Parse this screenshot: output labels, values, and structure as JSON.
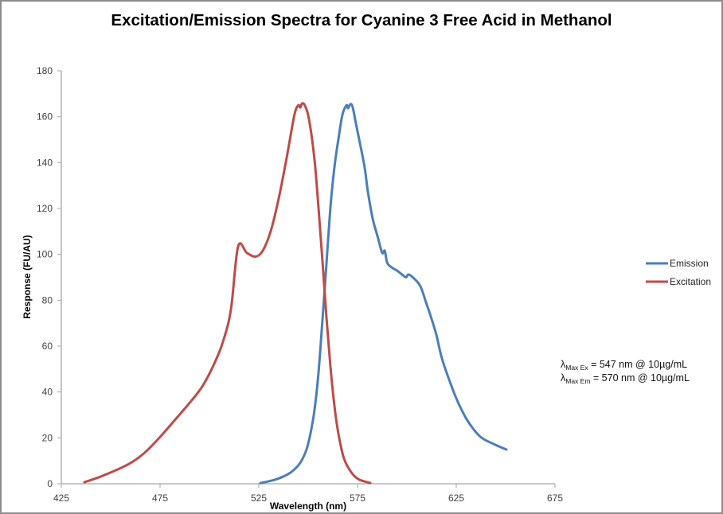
{
  "chart_data": {
    "type": "line",
    "title": "Excitation/Emission Spectra for Cyanine 3 Free Acid in Methanol",
    "xlabel": "Wavelength (nm)",
    "ylabel": "Response (FU/AU)",
    "xlim": [
      425,
      675
    ],
    "ylim": [
      0,
      180
    ],
    "xticks": [
      425,
      475,
      525,
      575,
      625,
      675
    ],
    "yticks": [
      0,
      20,
      40,
      60,
      80,
      100,
      120,
      140,
      160,
      180
    ],
    "grid": false,
    "legend_position": "right",
    "series": [
      {
        "name": "Emission",
        "color": "#4a7ebb",
        "x": [
          525.8,
          533,
          539,
          543,
          546.4,
          549.2,
          551.2,
          553.2,
          555.2,
          557.3,
          559.3,
          561.3,
          563.3,
          565.3,
          567.3,
          569.4,
          570.2,
          571.4,
          572.6,
          574.2,
          576.2,
          578.6,
          580.2,
          582.7,
          585.5,
          587.5,
          588.8,
          590,
          592.3,
          594.8,
          597.6,
          599.6,
          600.8,
          603.6,
          606.9,
          609.7,
          611.7,
          614.9,
          617.7,
          621.8,
          625.8,
          629.8,
          633.9,
          637.9,
          644,
          650.4
        ],
        "y": [
          0.3,
          1.7,
          3.8,
          6.2,
          9.7,
          15,
          22,
          32,
          48,
          72,
          96.4,
          120.7,
          138,
          150,
          160.6,
          165,
          163.7,
          165.5,
          164,
          157,
          148.5,
          138,
          127.6,
          115.5,
          106.8,
          100.6,
          101.6,
          96.4,
          94.3,
          93,
          91.2,
          90,
          91.2,
          89.5,
          86,
          79,
          74,
          65,
          54.8,
          44.4,
          35.7,
          28.8,
          23.6,
          20,
          17.3,
          14.9
        ]
      },
      {
        "name": "Excitation",
        "color": "#be4b48",
        "x": [
          436.7,
          446,
          458.5,
          466.5,
          474.6,
          482.7,
          490.7,
          496.8,
          502.8,
          506.9,
          510.9,
          514.5,
          519,
          523.4,
          527,
          531,
          535,
          539,
          543,
          545,
          546,
          547,
          548.4,
          550.4,
          553.2,
          555.2,
          557.3,
          559.3,
          561.3,
          563.3,
          565.3,
          568,
          571.4,
          575.4,
          581.5
        ],
        "y": [
          0.7,
          3.5,
          8.3,
          13,
          20,
          28,
          36,
          43,
          53,
          62,
          76,
          103.4,
          100.6,
          99,
          101.6,
          110,
          124,
          141.5,
          160.6,
          165,
          164,
          165.8,
          164.8,
          159,
          141.5,
          120.7,
          96.4,
          72,
          51,
          34,
          22,
          11.4,
          5.5,
          2,
          0.3
        ]
      }
    ],
    "annotations": [
      {
        "symbol": "λ",
        "subscript": "Max Ex",
        "text": " = 547 nm @ 10µg/mL"
      },
      {
        "symbol": "λ",
        "subscript": "Max Em",
        "text": " = 570 nm @ 10µg/mL"
      }
    ]
  }
}
